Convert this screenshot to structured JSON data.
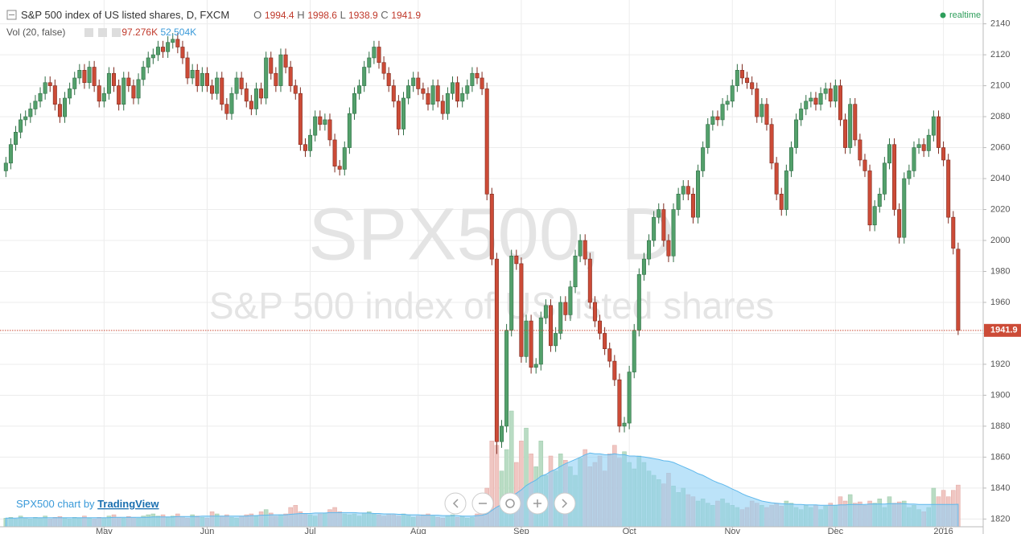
{
  "chart_data": {
    "type": "candlestick",
    "title": "S&P 500 index of US listed shares, D, FXCM",
    "ohlc_labels": [
      "O",
      "H",
      "L",
      "C"
    ],
    "watermark_symbol": "SPX500, D",
    "watermark_name": "S&P 500 index of US listed shares",
    "status": "realtime",
    "credit": "SPX500 chart by",
    "credit_link": "TradingView",
    "up_color": "#53a06b",
    "down_color": "#cc4b37",
    "grid": true,
    "ylim": [
      1815,
      2145
    ],
    "yticks": [
      1820,
      1840,
      1860,
      1880,
      1900,
      1920,
      1940,
      1960,
      1980,
      2000,
      2020,
      2040,
      2060,
      2080,
      2100,
      2120,
      2140
    ],
    "xlim": [
      -1.2,
      199.1
    ],
    "xticks": [
      {
        "value": 20,
        "label": "May"
      },
      {
        "value": 41,
        "label": "Jun"
      },
      {
        "value": 62,
        "label": "Jul"
      },
      {
        "value": 84,
        "label": "Aug"
      },
      {
        "value": 105,
        "label": "Sep"
      },
      {
        "value": 127,
        "label": "Oct"
      },
      {
        "value": 148,
        "label": "Nov"
      },
      {
        "value": 169,
        "label": "Dec"
      },
      {
        "value": 191,
        "label": "2016"
      }
    ],
    "open": [
      2045,
      2050,
      2062,
      2070,
      2078,
      2080,
      2085,
      2090,
      2095,
      2102,
      2100,
      2088,
      2080,
      2092,
      2098,
      2105,
      2110,
      2102,
      2112,
      2100,
      2090,
      2095,
      2108,
      2100,
      2088,
      2105,
      2100,
      2092,
      2104,
      2112,
      2118,
      2120,
      2125,
      2122,
      2128,
      2130,
      2125,
      2118,
      2105,
      2110,
      2100,
      2108,
      2100,
      2095,
      2105,
      2088,
      2082,
      2095,
      2105,
      2098,
      2090,
      2085,
      2098,
      2092,
      2118,
      2108,
      2100,
      2120,
      2112,
      2100,
      2095,
      2062,
      2058,
      2068,
      2080,
      2075,
      2078,
      2065,
      2048,
      2046,
      2060,
      2082,
      2095,
      2100,
      2112,
      2118,
      2125,
      2115,
      2108,
      2100,
      2090,
      2072,
      2092,
      2100,
      2105,
      2098,
      2095,
      2088,
      2100,
      2090,
      2082,
      2095,
      2102,
      2090,
      2095,
      2100,
      2108,
      2105,
      2098,
      2030,
      1988,
      1870,
      1880,
      1942,
      1990,
      1985,
      1925,
      1948,
      1918,
      1920,
      1950,
      1958,
      1932,
      1940,
      1960,
      1952,
      1970,
      1990,
      2000,
      1988,
      1960,
      1948,
      1940,
      1930,
      1922,
      1910,
      1880,
      1882,
      1915,
      1942,
      1978,
      1988,
      2000,
      2015,
      2020,
      2000,
      1990,
      2020,
      2030,
      2035,
      2030,
      2015,
      2045,
      2060,
      2075,
      2080,
      2078,
      2088,
      2090,
      2100,
      2110,
      2105,
      2102,
      2098,
      2080,
      2088,
      2075,
      2050,
      2030,
      2020,
      2045,
      2060,
      2078,
      2085,
      2090,
      2092,
      2088,
      2095,
      2098,
      2090,
      2100,
      2078,
      2060,
      2088,
      2065,
      2052,
      2045,
      2010,
      2022,
      2030,
      2050,
      2062,
      2020,
      2002,
      2040,
      2045,
      2060,
      2062,
      2058,
      2068,
      2080,
      2060,
      2052,
      2015,
      1994.4
    ],
    "high": [
      2054,
      2066,
      2074,
      2082,
      2084,
      2089,
      2094,
      2099,
      2106,
      2106,
      2104,
      2092,
      2096,
      2102,
      2109,
      2114,
      2114,
      2116,
      2116,
      2104,
      2099,
      2112,
      2112,
      2104,
      2109,
      2109,
      2104,
      2108,
      2116,
      2122,
      2124,
      2129,
      2129,
      2132,
      2134,
      2134,
      2129,
      2122,
      2114,
      2114,
      2112,
      2112,
      2104,
      2109,
      2109,
      2092,
      2099,
      2109,
      2109,
      2102,
      2094,
      2102,
      2102,
      2122,
      2122,
      2112,
      2124,
      2124,
      2116,
      2104,
      2099,
      2066,
      2072,
      2084,
      2084,
      2082,
      2082,
      2069,
      2052,
      2064,
      2086,
      2099,
      2104,
      2116,
      2122,
      2129,
      2129,
      2119,
      2112,
      2104,
      2094,
      2096,
      2104,
      2109,
      2109,
      2102,
      2099,
      2104,
      2104,
      2094,
      2099,
      2106,
      2106,
      2099,
      2104,
      2112,
      2112,
      2109,
      2102,
      2034,
      1992,
      1884,
      1946,
      1994,
      1994,
      1989,
      1952,
      1952,
      1924,
      1954,
      1962,
      1962,
      1944,
      1964,
      1964,
      1974,
      1994,
      2004,
      2004,
      1992,
      1964,
      1952,
      1944,
      1934,
      1926,
      1914,
      1886,
      1919,
      1946,
      1982,
      1992,
      2004,
      2019,
      2024,
      2024,
      2004,
      2024,
      2034,
      2039,
      2039,
      2034,
      2049,
      2064,
      2079,
      2084,
      2084,
      2092,
      2094,
      2104,
      2114,
      2114,
      2109,
      2106,
      2102,
      2092,
      2092,
      2079,
      2054,
      2034,
      2049,
      2064,
      2082,
      2089,
      2094,
      2096,
      2096,
      2099,
      2102,
      2102,
      2104,
      2104,
      2082,
      2092,
      2092,
      2069,
      2056,
      2049,
      2026,
      2034,
      2054,
      2066,
      2066,
      2024,
      2044,
      2049,
      2064,
      2066,
      2066,
      2072,
      2084,
      2084,
      2064,
      2056,
      2019,
      1998.6
    ],
    "low": [
      2041,
      2046,
      2058,
      2066,
      2074,
      2076,
      2081,
      2086,
      2091,
      2096,
      2084,
      2076,
      2076,
      2088,
      2094,
      2101,
      2098,
      2098,
      2096,
      2086,
      2086,
      2091,
      2096,
      2084,
      2084,
      2096,
      2088,
      2088,
      2100,
      2108,
      2114,
      2116,
      2118,
      2118,
      2124,
      2121,
      2114,
      2101,
      2101,
      2096,
      2096,
      2096,
      2091,
      2091,
      2084,
      2078,
      2078,
      2091,
      2094,
      2086,
      2081,
      2081,
      2088,
      2088,
      2104,
      2096,
      2096,
      2108,
      2096,
      2091,
      2058,
      2054,
      2054,
      2064,
      2071,
      2071,
      2061,
      2044,
      2042,
      2042,
      2056,
      2078,
      2091,
      2096,
      2108,
      2114,
      2111,
      2104,
      2096,
      2086,
      2068,
      2068,
      2088,
      2096,
      2094,
      2091,
      2084,
      2084,
      2086,
      2078,
      2078,
      2091,
      2086,
      2086,
      2091,
      2096,
      2101,
      2094,
      2026,
      1984,
      1862,
      1866,
      1876,
      1938,
      1981,
      1921,
      1921,
      1914,
      1914,
      1916,
      1946,
      1928,
      1928,
      1936,
      1948,
      1948,
      1966,
      1986,
      1984,
      1956,
      1944,
      1936,
      1926,
      1918,
      1906,
      1876,
      1876,
      1878,
      1911,
      1938,
      1974,
      1984,
      1996,
      2011,
      1996,
      1986,
      1986,
      2016,
      2026,
      2026,
      2011,
      2011,
      2041,
      2056,
      2071,
      2074,
      2074,
      2084,
      2086,
      2096,
      2101,
      2098,
      2094,
      2076,
      2076,
      2071,
      2046,
      2026,
      2016,
      2016,
      2041,
      2056,
      2074,
      2081,
      2086,
      2084,
      2084,
      2091,
      2086,
      2086,
      2074,
      2056,
      2056,
      2061,
      2048,
      2041,
      2006,
      2006,
      2018,
      2026,
      2046,
      2016,
      1998,
      1998,
      2036,
      2041,
      2056,
      2054,
      2054,
      2064,
      2056,
      2048,
      2011,
      1991,
      1938.9
    ],
    "close": [
      2050,
      2062,
      2070,
      2078,
      2080,
      2085,
      2090,
      2095,
      2102,
      2100,
      2088,
      2080,
      2092,
      2098,
      2105,
      2110,
      2102,
      2112,
      2100,
      2090,
      2095,
      2108,
      2100,
      2088,
      2105,
      2100,
      2092,
      2104,
      2112,
      2118,
      2120,
      2125,
      2122,
      2128,
      2130,
      2125,
      2118,
      2105,
      2110,
      2100,
      2108,
      2100,
      2095,
      2105,
      2088,
      2082,
      2095,
      2105,
      2098,
      2090,
      2085,
      2098,
      2092,
      2118,
      2108,
      2100,
      2120,
      2112,
      2100,
      2095,
      2062,
      2058,
      2068,
      2080,
      2075,
      2078,
      2065,
      2048,
      2046,
      2060,
      2082,
      2095,
      2100,
      2112,
      2118,
      2125,
      2115,
      2108,
      2100,
      2090,
      2072,
      2092,
      2100,
      2105,
      2098,
      2095,
      2088,
      2100,
      2090,
      2082,
      2095,
      2102,
      2090,
      2095,
      2100,
      2108,
      2105,
      2098,
      2030,
      1988,
      1870,
      1880,
      1942,
      1990,
      1985,
      1925,
      1948,
      1918,
      1920,
      1950,
      1958,
      1932,
      1940,
      1960,
      1952,
      1970,
      1990,
      2000,
      1988,
      1960,
      1948,
      1940,
      1930,
      1922,
      1910,
      1880,
      1882,
      1915,
      1942,
      1978,
      1988,
      2000,
      2015,
      2020,
      2000,
      1990,
      2020,
      2030,
      2035,
      2030,
      2015,
      2045,
      2060,
      2075,
      2080,
      2078,
      2088,
      2090,
      2100,
      2110,
      2105,
      2102,
      2098,
      2080,
      2088,
      2075,
      2050,
      2030,
      2020,
      2045,
      2060,
      2078,
      2085,
      2090,
      2092,
      2088,
      2095,
      2098,
      2090,
      2100,
      2078,
      2060,
      2088,
      2065,
      2052,
      2045,
      2010,
      2022,
      2030,
      2050,
      2062,
      2020,
      2002,
      2040,
      2045,
      2060,
      2062,
      2058,
      2068,
      2080,
      2060,
      2052,
      2015,
      1995,
      1941.9
    ],
    "volume": {
      "name": "Vol (20, false)",
      "vlim": [
        0,
        300
      ],
      "up_color": "#b9dcc4",
      "down_color": "#f0c6c2",
      "ma_color": "#8fd0f5",
      "last_label": "97.276K",
      "ma_last_label": "52.504K",
      "values": [
        20,
        22,
        18,
        25,
        20,
        18,
        22,
        20,
        25,
        18,
        22,
        24,
        20,
        18,
        22,
        20,
        25,
        20,
        18,
        22,
        20,
        25,
        28,
        22,
        20,
        24,
        22,
        20,
        25,
        28,
        30,
        25,
        28,
        22,
        25,
        30,
        24,
        20,
        28,
        25,
        22,
        20,
        35,
        30,
        25,
        28,
        22,
        20,
        25,
        28,
        30,
        25,
        35,
        40,
        32,
        25,
        28,
        30,
        45,
        50,
        35,
        30,
        28,
        25,
        30,
        32,
        40,
        45,
        35,
        30,
        28,
        30,
        25,
        32,
        35,
        30,
        28,
        25,
        30,
        28,
        25,
        30,
        28,
        22,
        25,
        28,
        30,
        25,
        22,
        20,
        25,
        28,
        22,
        25,
        20,
        22,
        30,
        35,
        90,
        200,
        190,
        130,
        180,
        270,
        150,
        200,
        230,
        170,
        140,
        200,
        120,
        165,
        130,
        170,
        155,
        140,
        120,
        160,
        180,
        140,
        150,
        165,
        130,
        170,
        190,
        160,
        175,
        150,
        135,
        165,
        150,
        130,
        120,
        110,
        100,
        125,
        95,
        80,
        90,
        75,
        70,
        60,
        65,
        55,
        50,
        60,
        65,
        55,
        50,
        45,
        40,
        45,
        60,
        55,
        50,
        45,
        50,
        55,
        48,
        60,
        55,
        45,
        40,
        50,
        45,
        50,
        40,
        48,
        55,
        50,
        70,
        60,
        75,
        55,
        58,
        50,
        60,
        55,
        65,
        45,
        70,
        55,
        58,
        60,
        45,
        50,
        40,
        35,
        45,
        90,
        70,
        85,
        70,
        85,
        97.276
      ],
      "ma": [
        20,
        20,
        20,
        21,
        21,
        21,
        21,
        21,
        21,
        21,
        21,
        21,
        21,
        21,
        21,
        21,
        21,
        21,
        21,
        21,
        21,
        21,
        22,
        22,
        22,
        22,
        22,
        22,
        22,
        22,
        23,
        23,
        23,
        23,
        23,
        24,
        24,
        24,
        24,
        24,
        25,
        25,
        25,
        25,
        25,
        25,
        25,
        25,
        25,
        25,
        26,
        26,
        27,
        27,
        28,
        28,
        28,
        28,
        29,
        30,
        31,
        31,
        31,
        32,
        32,
        32,
        33,
        33,
        33,
        33,
        33,
        33,
        32,
        32,
        32,
        31,
        31,
        30,
        30,
        30,
        29,
        29,
        28,
        28,
        28,
        27,
        27,
        27,
        27,
        26,
        26,
        26,
        26,
        25,
        25,
        25,
        26,
        27,
        30,
        38,
        46,
        52,
        60,
        72,
        78,
        86,
        96,
        103,
        109,
        118,
        122,
        129,
        134,
        141,
        147,
        152,
        157,
        162,
        168,
        172,
        170,
        170,
        168,
        168,
        170,
        168,
        168,
        165,
        165,
        164,
        163,
        161,
        159,
        157,
        154,
        153,
        150,
        145,
        140,
        135,
        130,
        124,
        120,
        114,
        108,
        103,
        99,
        94,
        88,
        83,
        77,
        72,
        68,
        64,
        60,
        58,
        56,
        55,
        54,
        53,
        53,
        52,
        52,
        51,
        51,
        51,
        50,
        50,
        50,
        50,
        51,
        51,
        52,
        52,
        52,
        52,
        53,
        53,
        53,
        53,
        54,
        54,
        54,
        54,
        53,
        53,
        52,
        52,
        52,
        52,
        52,
        52,
        52,
        52,
        52.504
      ]
    }
  }
}
